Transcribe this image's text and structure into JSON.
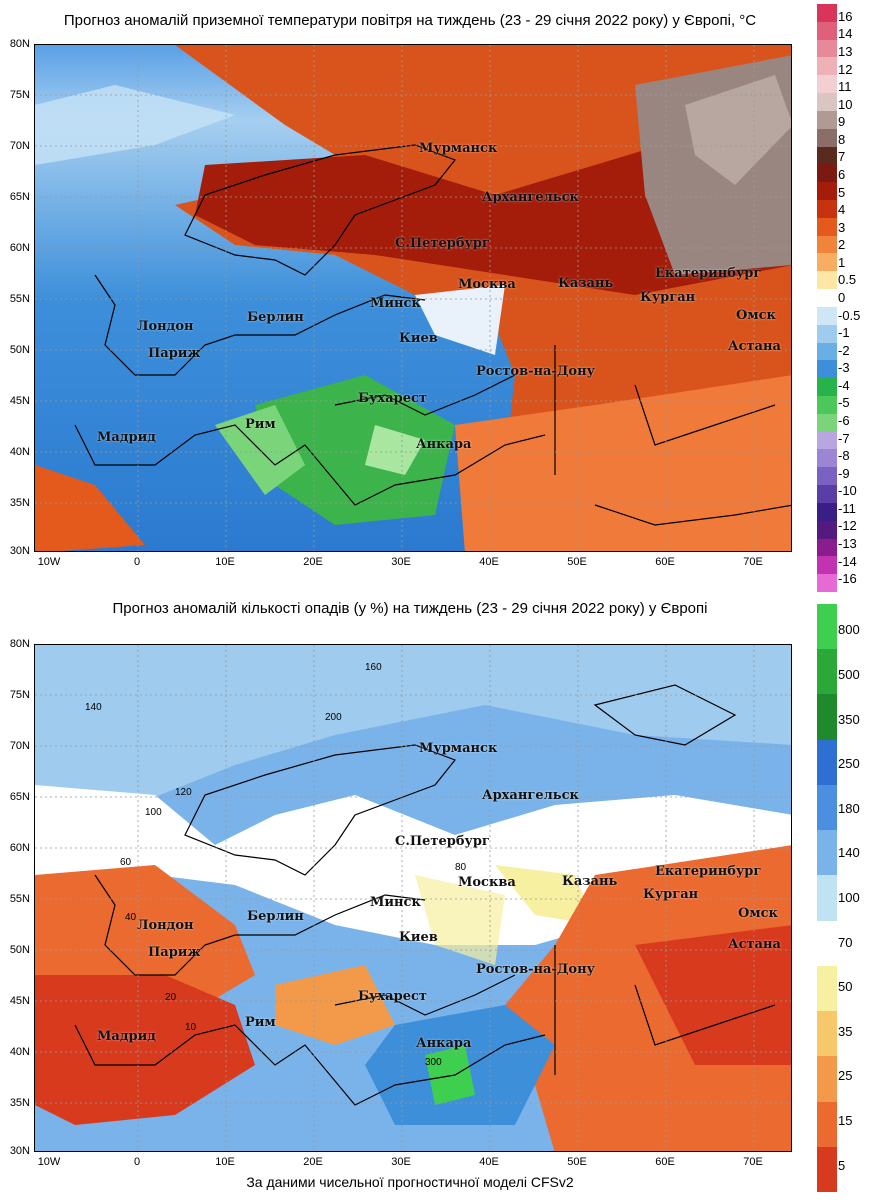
{
  "map1": {
    "title": "Прогноз аномалій приземної температури повітря на тиждень (23 - 29 січня 2022 року) у Європі, °C",
    "y_ticks": [
      "80N",
      "75N",
      "70N",
      "65N",
      "60N",
      "55N",
      "50N",
      "45N",
      "40N",
      "35N",
      "30N"
    ],
    "x_ticks": [
      "10W",
      "0",
      "10E",
      "20E",
      "30E",
      "40E",
      "50E",
      "60E",
      "70E"
    ],
    "cities": [
      "Мурманск",
      "Архангельск",
      "С.Петербург",
      "Москва",
      "Казань",
      "Екатеринбург",
      "Курган",
      "Омск",
      "Минск",
      "Берлин",
      "Лондон",
      "Париж",
      "Киев",
      "Астана",
      "Ростов-на-Дону",
      "Бухарест",
      "Рим",
      "Мадрид",
      "Анкара"
    ],
    "colorbar": {
      "labels": [
        "16",
        "14",
        "13",
        "12",
        "11",
        "10",
        "9",
        "8",
        "7",
        "6",
        "5",
        "4",
        "3",
        "2",
        "1",
        "0.5",
        "0",
        "-0.5",
        "-1",
        "-2",
        "-3",
        "-4",
        "-5",
        "-6",
        "-7",
        "-8",
        "-9",
        "-10",
        "-11",
        "-12",
        "-13",
        "-14",
        "-16"
      ],
      "colors": [
        "#d9345a",
        "#e0607a",
        "#e8899a",
        "#efb0b8",
        "#f3cfd2",
        "#d9c6c0",
        "#b09a94",
        "#8c6e68",
        "#5a2a1e",
        "#7a1a10",
        "#a31d0a",
        "#c8320e",
        "#e35a1c",
        "#f0843a",
        "#f7ae63",
        "#fde6a6",
        "#ffffff",
        "#cfe6f6",
        "#9fcbee",
        "#6aaee6",
        "#3d8fda",
        "#27b24b",
        "#4cc75a",
        "#7ad57a",
        "#b8a6e0",
        "#9b86d4",
        "#7a62c2",
        "#5a3ea8",
        "#3a1e86",
        "#541a80",
        "#8a1c8c",
        "#c233b0",
        "#e76ad4"
      ]
    }
  },
  "map2": {
    "title": "Прогноз аномалій кількості опадів (у %) на тиждень (23 - 29 січня 2022 року) у Європі",
    "y_ticks": [
      "80N",
      "75N",
      "70N",
      "65N",
      "60N",
      "55N",
      "50N",
      "45N",
      "40N",
      "35N",
      "30N"
    ],
    "x_ticks": [
      "10W",
      "0",
      "10E",
      "20E",
      "30E",
      "40E",
      "50E",
      "60E",
      "70E"
    ],
    "cities": [
      "Мурманск",
      "Архангельск",
      "С.Петербург",
      "Москва",
      "Казань",
      "Екатеринбург",
      "Курган",
      "Омск",
      "Минск",
      "Берлин",
      "Лондон",
      "Париж",
      "Киев",
      "Астана",
      "Ростов-на-Дону",
      "Бухарест",
      "Рим",
      "Мадрид",
      "Анкара"
    ],
    "contour_labels": [
      "160",
      "140",
      "120",
      "100",
      "200",
      "80",
      "60",
      "40",
      "20",
      "10",
      "300"
    ],
    "colorbar": {
      "labels": [
        "800",
        "500",
        "350",
        "250",
        "180",
        "140",
        "100",
        "70",
        "50",
        "35",
        "25",
        "15",
        "5"
      ],
      "colors": [
        "#3fcf4f",
        "#2aa838",
        "#1f8a2c",
        "#2e6fd2",
        "#4b8fe0",
        "#7ab3ea",
        "#bfe3f3",
        "#ffffff",
        "#f6f0a0",
        "#f6c86a",
        "#f39a4a",
        "#ea6a30",
        "#d83a1e"
      ]
    }
  },
  "source": "За даними чисельної прогностичної моделі CFSv2"
}
